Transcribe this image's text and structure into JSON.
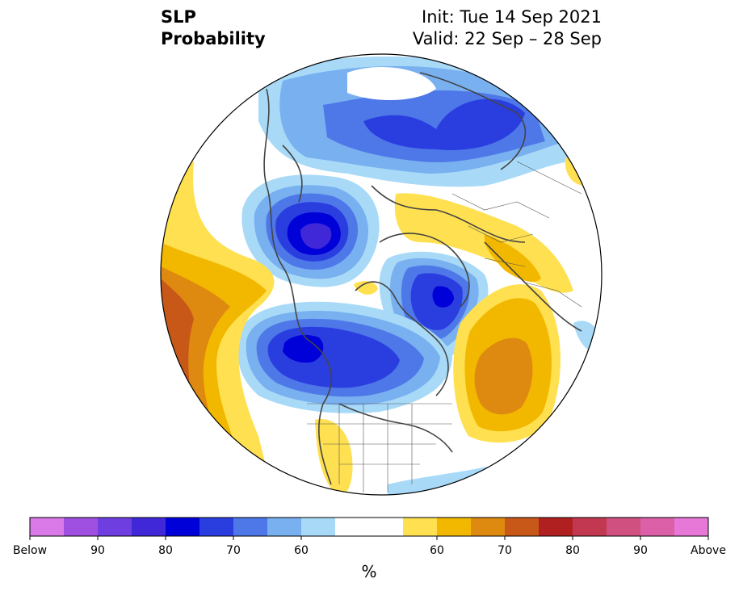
{
  "header": {
    "title_line1": "SLP",
    "title_line2": "Probability",
    "init": "Init: Tue 14 Sep 2021",
    "valid": "Valid: 22 Sep – 28 Sep"
  },
  "colorbar": {
    "unit": "%",
    "colors": [
      "#d97ae8",
      "#a050e0",
      "#6e3ee0",
      "#4028d8",
      "#0000d8",
      "#2a3ee0",
      "#4e78e8",
      "#78b0f0",
      "#a8daf8",
      "#ffffff",
      "#ffffff",
      "#ffe050",
      "#f2b800",
      "#de8a10",
      "#c85818",
      "#b02020",
      "#c23850",
      "#d05080",
      "#dc60a8",
      "#e878d8"
    ],
    "tick_labels": [
      "Below",
      "90",
      "80",
      "70",
      "60",
      "60",
      "70",
      "80",
      "90",
      "Above"
    ]
  },
  "map": {
    "projection": "north-polar-stereographic",
    "fill_colors": {
      "below_60": "#a8daf8",
      "below_65": "#78b0f0",
      "below_70": "#4e78e8",
      "below_75": "#2a3ee0",
      "below_80": "#0000d8",
      "below_85": "#4028d8",
      "above_55": "#ffe050",
      "above_60": "#f2b800",
      "above_65": "#de8a10",
      "above_70": "#c85818",
      "coast": "#444444"
    }
  }
}
